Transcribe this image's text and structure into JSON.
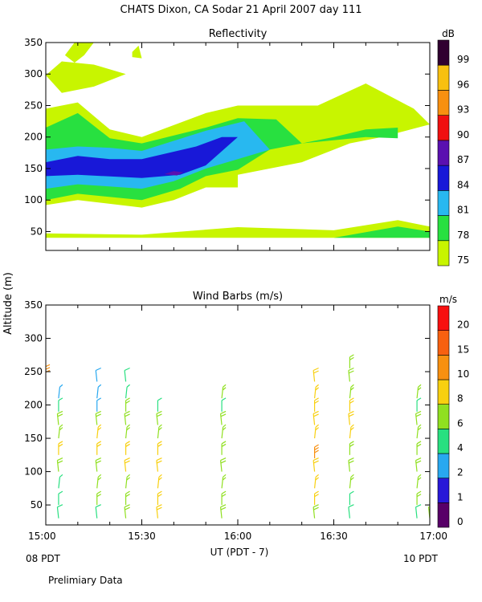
{
  "figure": {
    "title": "CHATS Dixon, CA  Sodar  21 April 2007  day 111",
    "ylabel": "Altitude (m)",
    "xlabel": "UT  (PDT - 7)",
    "x_left_note": "08 PDT",
    "x_right_note": "10 PDT",
    "footer": "Prelimiary Data"
  },
  "chart_data": [
    {
      "type": "filled-contour",
      "title": "Reflectivity",
      "x_unit": "UT time",
      "xlim": [
        "15:00",
        "17:00"
      ],
      "ylim": [
        20,
        350
      ],
      "yticks": [
        50,
        100,
        150,
        200,
        250,
        300,
        350
      ],
      "xticks": [
        "15:00",
        "15:30",
        "16:00",
        "16:30",
        "17:00"
      ],
      "colorbar": {
        "unit": "dB",
        "levels": [
          "75",
          "78",
          "81",
          "84",
          "87",
          "90",
          "93",
          "96",
          "99"
        ],
        "colors": [
          "#c8f500",
          "#28e040",
          "#28b8f0",
          "#1818d8",
          "#5a10b0",
          "#f01010",
          "#f89010",
          "#f8c010",
          "#300030"
        ]
      },
      "regions": [
        {
          "level": "75",
          "points": [
            [
              "15:00",
              92
            ],
            [
              "15:10",
              100
            ],
            [
              "15:30",
              88
            ],
            [
              "15:40",
              100
            ],
            [
              "15:50",
              120
            ],
            [
              "16:00",
              120
            ],
            [
              "16:00",
              140
            ],
            [
              "16:20",
              160
            ],
            [
              "16:35",
              190
            ],
            [
              "16:45",
              200
            ],
            [
              "17:00",
              220
            ],
            [
              "16:55",
              245
            ],
            [
              "16:40",
              285
            ],
            [
              "16:25",
              250
            ],
            [
              "16:00",
              250
            ],
            [
              "15:50",
              238
            ],
            [
              "15:30",
              200
            ],
            [
              "15:20",
              212
            ],
            [
              "15:10",
              255
            ],
            [
              "15:00",
              245
            ]
          ]
        },
        {
          "level": "75",
          "points": [
            [
              "15:00",
              47
            ],
            [
              "15:30",
              45
            ],
            [
              "16:00",
              57
            ],
            [
              "16:30",
              52
            ],
            [
              "16:50",
              68
            ],
            [
              "17:00",
              58
            ],
            [
              "17:00",
              40
            ],
            [
              "15:00",
              40
            ]
          ]
        },
        {
          "level": "75",
          "points": [
            [
              "15:00",
              298
            ],
            [
              "15:05",
              320
            ],
            [
              "15:15",
              315
            ],
            [
              "15:25",
              300
            ],
            [
              "15:15",
              280
            ],
            [
              "15:05",
              270
            ]
          ]
        },
        {
          "level": "75",
          "points": [
            [
              "15:06",
              330
            ],
            [
              "15:09",
              350
            ],
            [
              "15:15",
              350
            ],
            [
              "15:12",
              330
            ],
            [
              "15:09",
              318
            ]
          ]
        },
        {
          "level": "75",
          "points": [
            [
              "15:27",
              335
            ],
            [
              "15:29",
              345
            ],
            [
              "15:30",
              325
            ],
            [
              "15:27",
              327
            ]
          ]
        },
        {
          "level": "78",
          "points": [
            [
              "15:00",
              100
            ],
            [
              "15:10",
              110
            ],
            [
              "15:30",
              100
            ],
            [
              "15:42",
              118
            ],
            [
              "15:50",
              138
            ],
            [
              "16:00",
              148
            ],
            [
              "16:10",
              180
            ],
            [
              "16:20",
              190
            ],
            [
              "16:40",
              200
            ],
            [
              "16:50",
              198
            ],
            [
              "16:50",
              215
            ],
            [
              "16:40",
              212
            ],
            [
              "16:30",
              200
            ],
            [
              "16:20",
              190
            ],
            [
              "16:12",
              228
            ],
            [
              "16:00",
              230
            ],
            [
              "15:50",
              215
            ],
            [
              "15:30",
              190
            ],
            [
              "15:20",
              198
            ],
            [
              "15:10",
              238
            ],
            [
              "15:00",
              215
            ]
          ]
        },
        {
          "level": "78",
          "points": [
            [
              "16:30",
              40
            ],
            [
              "16:50",
              58
            ],
            [
              "17:00",
              50
            ],
            [
              "17:00",
              40
            ]
          ]
        },
        {
          "level": "81",
          "points": [
            [
              "15:00",
              118
            ],
            [
              "15:10",
              125
            ],
            [
              "15:30",
              118
            ],
            [
              "15:40",
              130
            ],
            [
              "15:50",
              150
            ],
            [
              "16:00",
              165
            ],
            [
              "16:10",
              180
            ],
            [
              "16:02",
              225
            ],
            [
              "15:50",
              210
            ],
            [
              "15:30",
              178
            ],
            [
              "15:20",
              183
            ],
            [
              "15:10",
              185
            ],
            [
              "15:00",
              180
            ]
          ]
        },
        {
          "level": "84",
          "points": [
            [
              "15:00",
              138
            ],
            [
              "15:10",
              140
            ],
            [
              "15:30",
              135
            ],
            [
              "15:42",
              140
            ],
            [
              "15:50",
              155
            ],
            [
              "16:00",
              200
            ],
            [
              "15:55",
              200
            ],
            [
              "15:47",
              185
            ],
            [
              "15:30",
              165
            ],
            [
              "15:20",
              165
            ],
            [
              "15:10",
              170
            ],
            [
              "15:00",
              160
            ]
          ]
        },
        {
          "level": "87",
          "points": [
            [
              "15:37",
              141
            ],
            [
              "15:40",
              146
            ],
            [
              "15:43",
              144
            ],
            [
              "15:41",
              139
            ]
          ]
        }
      ]
    },
    {
      "type": "wind-barbs",
      "title": "Wind Barbs (m/s)",
      "xlim": [
        "15:00",
        "17:00"
      ],
      "ylim": [
        20,
        350
      ],
      "yticks": [
        50,
        100,
        150,
        200,
        250,
        300,
        350
      ],
      "xticks": [
        "15:00",
        "15:30",
        "16:00",
        "16:30",
        "17:00"
      ],
      "colorbar": {
        "unit": "m/s",
        "levels": [
          "0",
          "1",
          "2",
          "4",
          "6",
          "8",
          "10",
          "15",
          "20"
        ],
        "colors": [
          "#580068",
          "#2818d8",
          "#28a8f0",
          "#28e080",
          "#90e020",
          "#f8d010",
          "#f89010",
          "#f86010",
          "#f81010"
        ]
      },
      "profiles": [
        {
          "time": "15:04",
          "barbs": [
            {
              "alt": 30,
              "speed": "4"
            },
            {
              "alt": 50,
              "speed": "4"
            },
            {
              "alt": 75,
              "speed": "4"
            },
            {
              "alt": 100,
              "speed": "6"
            },
            {
              "alt": 125,
              "speed": "8"
            },
            {
              "alt": 150,
              "speed": "6"
            },
            {
              "alt": 170,
              "speed": "6"
            },
            {
              "alt": 190,
              "speed": "4"
            },
            {
              "alt": 210,
              "speed": "2"
            }
          ]
        },
        {
          "time": "15:00",
          "barbs": [
            {
              "alt": 240,
              "speed": "10"
            }
          ]
        },
        {
          "time": "15:16",
          "barbs": [
            {
              "alt": 30,
              "speed": "4"
            },
            {
              "alt": 50,
              "speed": "6"
            },
            {
              "alt": 75,
              "speed": "6"
            },
            {
              "alt": 100,
              "speed": "6"
            },
            {
              "alt": 125,
              "speed": "8"
            },
            {
              "alt": 150,
              "speed": "8"
            },
            {
              "alt": 170,
              "speed": "6"
            },
            {
              "alt": 190,
              "speed": "2"
            },
            {
              "alt": 210,
              "speed": "2"
            },
            {
              "alt": 235,
              "speed": "2"
            }
          ]
        },
        {
          "time": "15:25",
          "barbs": [
            {
              "alt": 30,
              "speed": "6"
            },
            {
              "alt": 50,
              "speed": "6"
            },
            {
              "alt": 75,
              "speed": "6"
            },
            {
              "alt": 100,
              "speed": "8"
            },
            {
              "alt": 125,
              "speed": "8"
            },
            {
              "alt": 150,
              "speed": "6"
            },
            {
              "alt": 170,
              "speed": "6"
            },
            {
              "alt": 190,
              "speed": "6"
            },
            {
              "alt": 210,
              "speed": "4"
            },
            {
              "alt": 235,
              "speed": "4"
            }
          ]
        },
        {
          "time": "15:35",
          "barbs": [
            {
              "alt": 30,
              "speed": "8"
            },
            {
              "alt": 50,
              "speed": "8"
            },
            {
              "alt": 75,
              "speed": "8"
            },
            {
              "alt": 100,
              "speed": "8"
            },
            {
              "alt": 125,
              "speed": "8"
            },
            {
              "alt": 150,
              "speed": "6"
            },
            {
              "alt": 170,
              "speed": "6"
            },
            {
              "alt": 190,
              "speed": "4"
            }
          ]
        },
        {
          "time": "15:55",
          "barbs": [
            {
              "alt": 30,
              "speed": "6"
            },
            {
              "alt": 50,
              "speed": "6"
            },
            {
              "alt": 75,
              "speed": "6"
            },
            {
              "alt": 100,
              "speed": "6"
            },
            {
              "alt": 125,
              "speed": "6"
            },
            {
              "alt": 150,
              "speed": "6"
            },
            {
              "alt": 170,
              "speed": "6"
            },
            {
              "alt": 190,
              "speed": "4"
            },
            {
              "alt": 210,
              "speed": "6"
            }
          ]
        },
        {
          "time": "16:24",
          "barbs": [
            {
              "alt": 30,
              "speed": "6"
            },
            {
              "alt": 50,
              "speed": "8"
            },
            {
              "alt": 75,
              "speed": "8"
            },
            {
              "alt": 100,
              "speed": "8"
            },
            {
              "alt": 120,
              "speed": "10"
            },
            {
              "alt": 150,
              "speed": "8"
            },
            {
              "alt": 170,
              "speed": "8"
            },
            {
              "alt": 190,
              "speed": "8"
            },
            {
              "alt": 210,
              "speed": "8"
            },
            {
              "alt": 235,
              "speed": "8"
            }
          ]
        },
        {
          "time": "16:35",
          "barbs": [
            {
              "alt": 30,
              "speed": "4"
            },
            {
              "alt": 50,
              "speed": "4"
            },
            {
              "alt": 75,
              "speed": "6"
            },
            {
              "alt": 100,
              "speed": "6"
            },
            {
              "alt": 125,
              "speed": "6"
            },
            {
              "alt": 150,
              "speed": "8"
            },
            {
              "alt": 170,
              "speed": "8"
            },
            {
              "alt": 190,
              "speed": "8"
            },
            {
              "alt": 210,
              "speed": "6"
            },
            {
              "alt": 235,
              "speed": "6"
            },
            {
              "alt": 255,
              "speed": "6"
            }
          ]
        },
        {
          "time": "16:56",
          "barbs": [
            {
              "alt": 30,
              "speed": "4"
            },
            {
              "alt": 50,
              "speed": "6"
            },
            {
              "alt": 75,
              "speed": "6"
            },
            {
              "alt": 100,
              "speed": "6"
            },
            {
              "alt": 125,
              "speed": "6"
            },
            {
              "alt": 150,
              "speed": "6"
            },
            {
              "alt": 170,
              "speed": "6"
            },
            {
              "alt": 190,
              "speed": "4"
            },
            {
              "alt": 210,
              "speed": "6"
            }
          ]
        },
        {
          "time": "17:00",
          "barbs": [
            {
              "alt": 30,
              "speed": "6"
            },
            {
              "alt": 50,
              "speed": "6"
            },
            {
              "alt": 75,
              "speed": "6"
            }
          ]
        }
      ]
    }
  ]
}
